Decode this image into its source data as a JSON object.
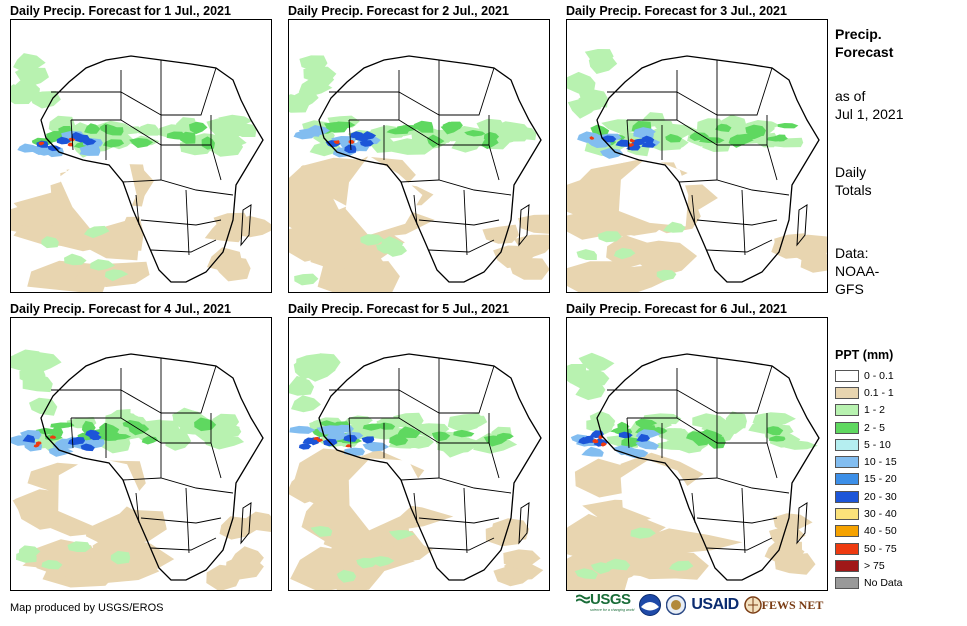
{
  "panels": [
    {
      "title": "Daily Precip. Forecast for 1 Jul., 2021"
    },
    {
      "title": "Daily Precip. Forecast for 2 Jul., 2021"
    },
    {
      "title": "Daily Precip. Forecast for 3 Jul., 2021"
    },
    {
      "title": "Daily Precip. Forecast for 4 Jul., 2021"
    },
    {
      "title": "Daily Precip. Forecast for 5 Jul., 2021"
    },
    {
      "title": "Daily Precip. Forecast for 6 Jul., 2021"
    }
  ],
  "side": {
    "title_line1": "Precip.",
    "title_line2": "Forecast",
    "asof_line1": "as of",
    "asof_line2": "Jul 1, 2021",
    "daily_line1": "Daily",
    "daily_line2": "Totals",
    "data_line1": "Data:",
    "data_line2": "NOAA-",
    "data_line3": "GFS"
  },
  "legend": {
    "title": "PPT (mm)",
    "items": [
      {
        "label": "0 - 0.1",
        "color": "#ffffff"
      },
      {
        "label": "0.1 - 1",
        "color": "#e8d5b0"
      },
      {
        "label": "1 - 2",
        "color": "#b8f2b0"
      },
      {
        "label": "2 - 5",
        "color": "#5fd860"
      },
      {
        "label": "5 - 10",
        "color": "#b5eef0"
      },
      {
        "label": "10 - 15",
        "color": "#82bdf0"
      },
      {
        "label": "15 - 20",
        "color": "#3c8fe8"
      },
      {
        "label": "20 - 30",
        "color": "#1c55d8"
      },
      {
        "label": "30 - 40",
        "color": "#fbe27a"
      },
      {
        "label": "40 - 50",
        "color": "#f5a200"
      },
      {
        "label": "50 - 75",
        "color": "#ee3a10"
      },
      {
        "label": "> 75",
        "color": "#a01818"
      },
      {
        "label": "No Data",
        "color": "#999999"
      }
    ]
  },
  "credit": "Map produced by USGS/EROS",
  "logos": {
    "usgs": "USGS",
    "usgs_tagline": "science for a changing world",
    "usaid": "USAID",
    "fews": "FEWS NET"
  }
}
